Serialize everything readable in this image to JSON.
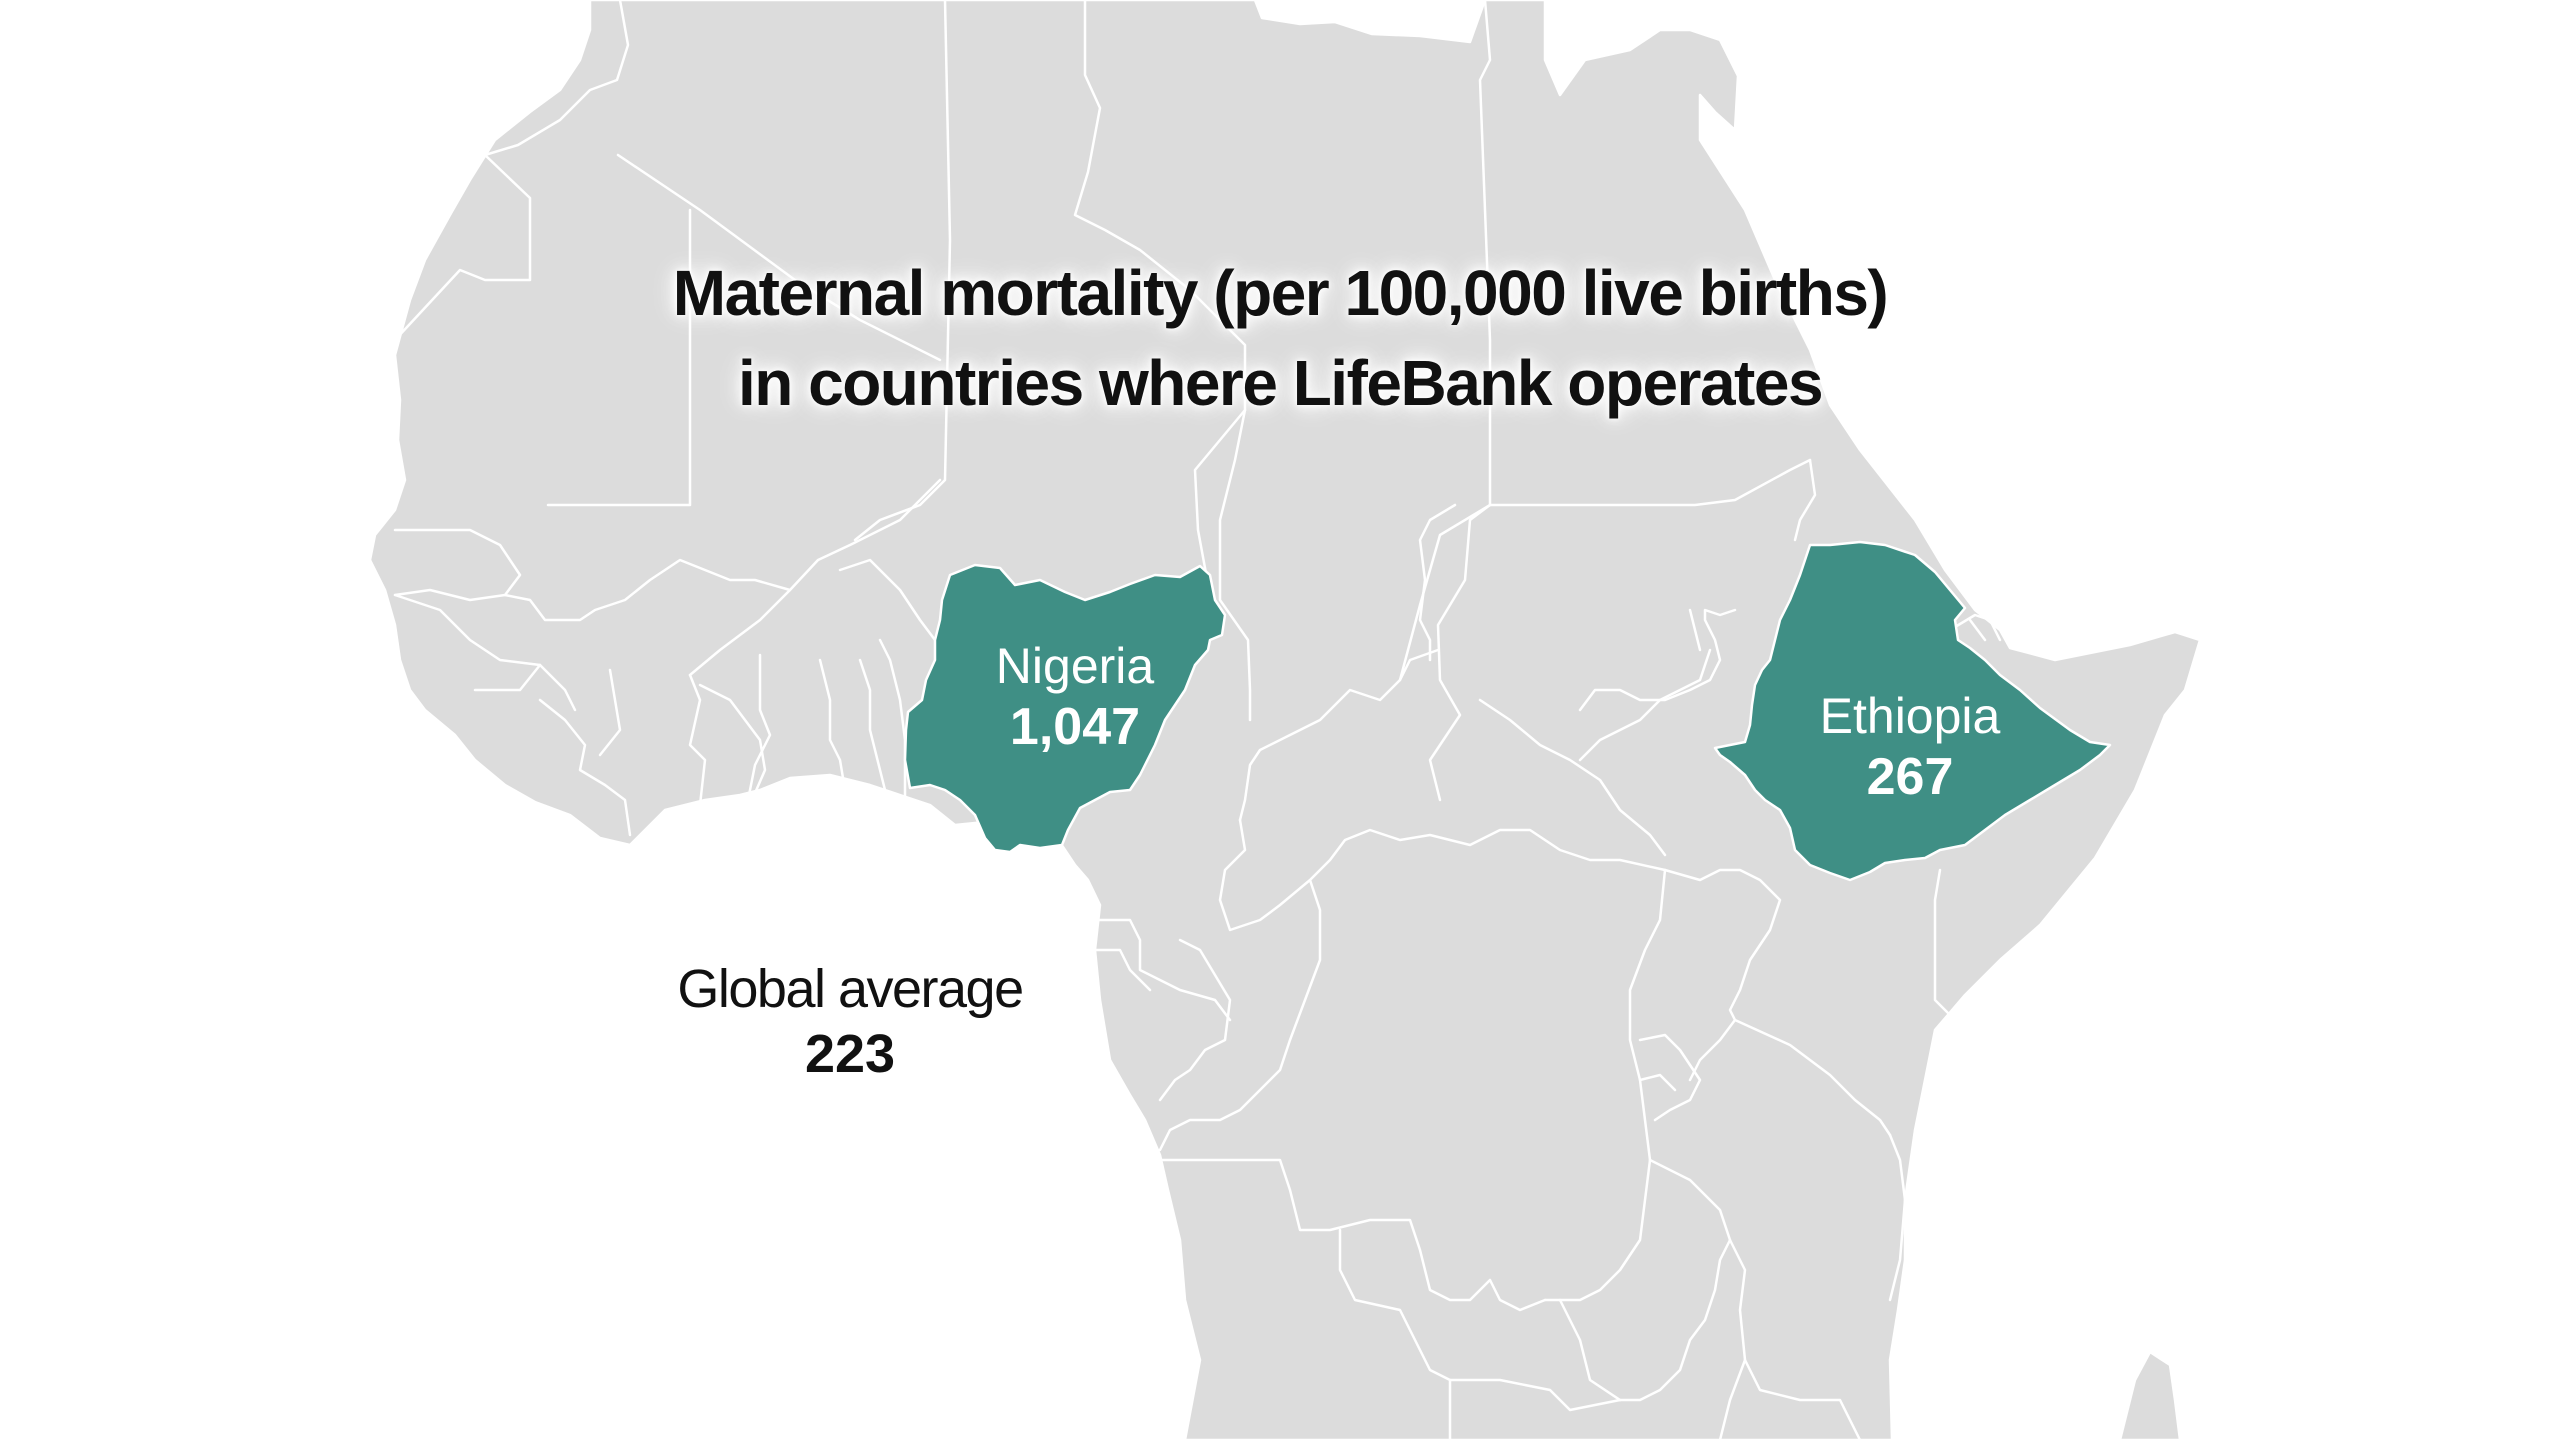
{
  "map": {
    "region": "Africa",
    "highlight_color": "#3f8f85",
    "land_color": "#dcdcdc",
    "border_color": "#ffffff",
    "background_color": "#ffffff",
    "title_line1": "Maternal mortality (per 100,000 live births)",
    "title_line2": "in countries where LifeBank operates"
  },
  "countries": [
    {
      "name": "Nigeria",
      "value": "1,047",
      "highlighted": true
    },
    {
      "name": "Ethiopia",
      "value": "267",
      "highlighted": true
    }
  ],
  "global_average": {
    "label": "Global average",
    "value": "223"
  }
}
